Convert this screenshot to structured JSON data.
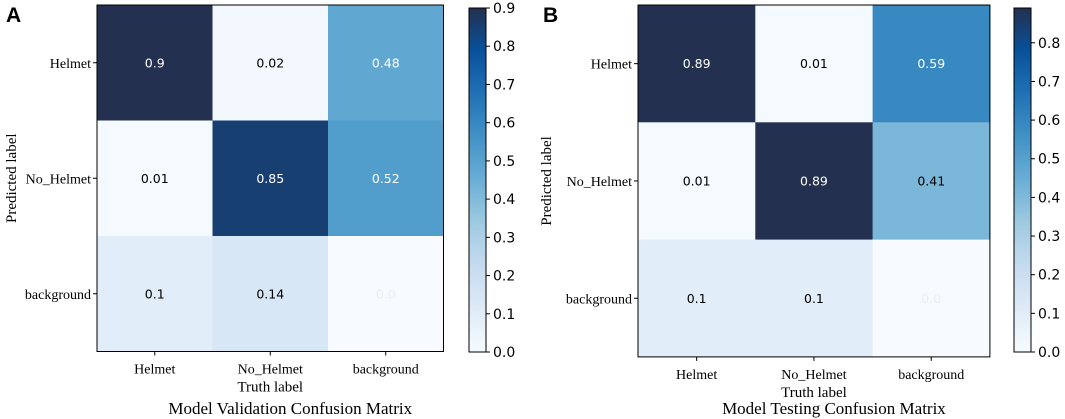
{
  "chart_data": [
    {
      "type": "heatmap",
      "panel_label": "A",
      "title": "Model Validation Confusion Matrix",
      "xlabel": "Truth label",
      "ylabel": "Predicted label",
      "x_categories": [
        "Helmet",
        "No_Helmet",
        "background"
      ],
      "y_categories": [
        "Helmet",
        "No_Helmet",
        "background"
      ],
      "values": [
        [
          0.9,
          0.02,
          0.48
        ],
        [
          0.01,
          0.85,
          0.52
        ],
        [
          0.1,
          0.14,
          0.0
        ]
      ],
      "cell_labels": [
        [
          "0.9",
          "0.02",
          "0.48"
        ],
        [
          "0.01",
          "0.85",
          "0.52"
        ],
        [
          "0.1",
          "0.14",
          "0.0"
        ]
      ],
      "colorbar": {
        "range": [
          0,
          0.9
        ],
        "ticks": [
          0.0,
          0.1,
          0.2,
          0.3,
          0.4,
          0.5,
          0.6,
          0.7,
          0.8,
          0.9
        ],
        "tick_labels": [
          "0.0",
          "0.1",
          "0.2",
          "0.3",
          "0.4",
          "0.5",
          "0.6",
          "0.7",
          "0.8",
          "0.9"
        ]
      },
      "colormap": "Blues"
    },
    {
      "type": "heatmap",
      "panel_label": "B",
      "title": "Model Testing Confusion Matrix",
      "xlabel": "Truth label",
      "ylabel": "Predicted label",
      "x_categories": [
        "Helmet",
        "No_Helmet",
        "background"
      ],
      "y_categories": [
        "Helmet",
        "No_Helmet",
        "background"
      ],
      "values": [
        [
          0.89,
          0.01,
          0.59
        ],
        [
          0.01,
          0.89,
          0.41
        ],
        [
          0.1,
          0.1,
          0.0
        ]
      ],
      "cell_labels": [
        [
          "0.89",
          "0.01",
          "0.59"
        ],
        [
          "0.01",
          "0.89",
          "0.41"
        ],
        [
          "0.1",
          "0.1",
          "0.0"
        ]
      ],
      "colorbar": {
        "range": [
          0,
          0.89
        ],
        "ticks": [
          0.0,
          0.1,
          0.2,
          0.3,
          0.4,
          0.5,
          0.6,
          0.7,
          0.8
        ],
        "tick_labels": [
          "0.0",
          "0.1",
          "0.2",
          "0.3",
          "0.4",
          "0.5",
          "0.6",
          "0.7",
          "0.8"
        ]
      },
      "colormap": "Blues"
    }
  ]
}
